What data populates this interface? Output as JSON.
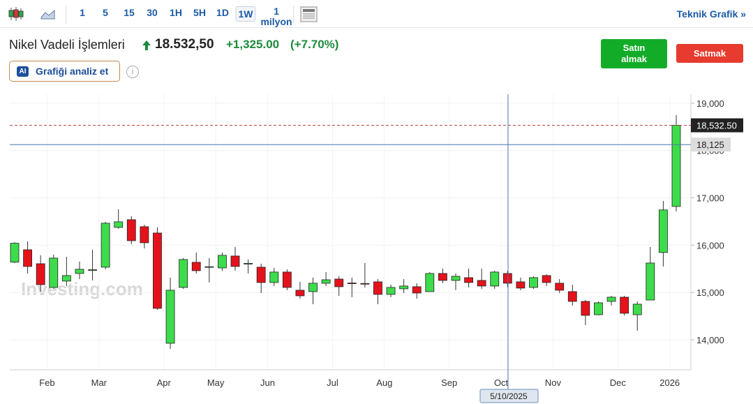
{
  "toolbar": {
    "intervals": [
      "1",
      "5",
      "15",
      "30",
      "1H",
      "5H",
      "1D",
      "1W",
      "1 milyon"
    ],
    "active": "1W",
    "link": "Teknik Grafik »"
  },
  "header": {
    "instrument": "Nikel Vadeli İşlemleri",
    "price": "18.532,50",
    "change": "+1,325.00",
    "change_percent": "(+7.70%)",
    "buy": "Satın almak",
    "sell": "Satmak",
    "ai_badge": "AI",
    "ai_button": "Grafiği analiz et"
  },
  "chart_data": {
    "type": "candlestick",
    "categories": [
      null,
      null,
      null,
      "Feb",
      null,
      null,
      null,
      "Mar",
      null,
      null,
      null,
      null,
      "Apr",
      null,
      null,
      null,
      "May",
      null,
      null,
      null,
      "Jun",
      null,
      null,
      null,
      null,
      "Jul",
      null,
      null,
      null,
      "Aug",
      null,
      null,
      null,
      null,
      "Sep",
      null,
      null,
      null,
      "Oct",
      null,
      null,
      null,
      "Nov",
      null,
      null,
      null,
      null,
      "Dec",
      null,
      null,
      null,
      "2026"
    ],
    "open": [
      15640,
      15902,
      15607,
      15106,
      15240,
      15401,
      15475,
      15534,
      16375,
      16537,
      16390,
      16256,
      13926,
      15106,
      15637,
      15530,
      15519,
      15770,
      15600,
      15534,
      15210,
      15431,
      15047,
      15018,
      15195,
      15283,
      15200,
      15190,
      15224,
      14959,
      15077,
      15121,
      15018,
      15401,
      15254,
      15313,
      15254,
      15136,
      15401,
      15224,
      15106,
      15357,
      15195,
      15018,
      14811,
      14530,
      14811,
      14900,
      14530,
      14840,
      15844,
      16817
    ],
    "high": [
      16060,
      16080,
      15785,
      15800,
      15755,
      15652,
      15902,
      16493,
      16758,
      16611,
      16433,
      16375,
      15313,
      15726,
      15844,
      15726,
      15844,
      15962,
      15696,
      15607,
      15519,
      15490,
      15224,
      15313,
      15431,
      15342,
      15313,
      15622,
      15283,
      15165,
      15283,
      15195,
      15431,
      15505,
      15401,
      15505,
      15505,
      15460,
      15460,
      15313,
      15342,
      15386,
      15283,
      15165,
      14841,
      14811,
      14929,
      14929,
      14811,
      15962,
      16935,
      18750
    ],
    "low": [
      15620,
      15401,
      15018,
      15077,
      15136,
      15283,
      15254,
      15490,
      16345,
      16021,
      15932,
      14634,
      13808,
      15077,
      15401,
      15210,
      15460,
      15460,
      15401,
      14988,
      15136,
      15047,
      14870,
      14752,
      15136,
      14929,
      14900,
      15106,
      14752,
      14900,
      14988,
      14870,
      15018,
      15195,
      15047,
      15106,
      15077,
      15077,
      15106,
      15047,
      15077,
      15136,
      14988,
      14722,
      14310,
      14516,
      14722,
      14516,
      14192,
      14840,
      15549,
      16713
    ],
    "close": [
      16040,
      15549,
      15165,
      15726,
      15357,
      15490,
      15480,
      16463,
      16493,
      16094,
      16050,
      14664,
      15047,
      15696,
      15460,
      15545,
      15785,
      15549,
      15615,
      15210,
      15431,
      15106,
      14929,
      15195,
      15268,
      15121,
      15190,
      15180,
      14959,
      15106,
      15136,
      14988,
      15401,
      15254,
      15342,
      15210,
      15136,
      15431,
      15195,
      15092,
      15313,
      15210,
      15047,
      14811,
      14516,
      14781,
      14900,
      14560,
      14752,
      15622,
      16744,
      18532.5
    ],
    "up_color": "#3ddc4c",
    "down_color": "#e5121c",
    "ylim": [
      13365,
      19190
    ],
    "yticks": [
      {
        "value": 14000,
        "label": "14,000"
      },
      {
        "value": 15000,
        "label": "15,000"
      },
      {
        "value": 16000,
        "label": "16,000"
      },
      {
        "value": 17000,
        "label": "17,000"
      },
      {
        "value": 18000,
        "label": "18,000"
      },
      {
        "value": 19000,
        "label": "19,000"
      }
    ],
    "grid": true,
    "last_price": {
      "value": 18532.5,
      "label": "18,532.50"
    },
    "crosshair": {
      "x_label": "5/10/2025",
      "y": {
        "value": 18125,
        "label": "18,125"
      }
    },
    "watermark": "Investing.com"
  }
}
